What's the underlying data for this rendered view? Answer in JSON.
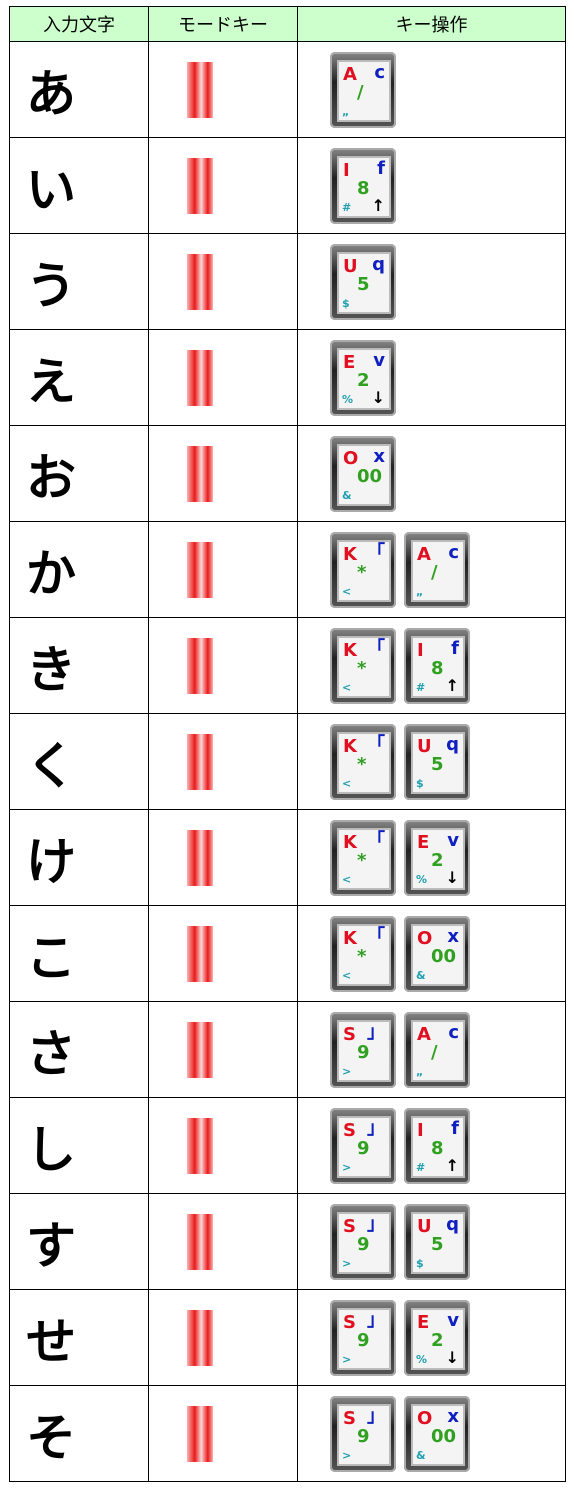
{
  "table": {
    "header": [
      "入力文字",
      "モードキー",
      "キー操作"
    ],
    "rows": [
      {
        "kana": "あ",
        "keys": [
          {
            "main": "A",
            "top": "c",
            "mid": "/",
            "sub": "„"
          }
        ]
      },
      {
        "kana": "い",
        "keys": [
          {
            "main": "I",
            "top": "f",
            "mid": "8",
            "sub": "#",
            "arrow": "↑"
          }
        ]
      },
      {
        "kana": "う",
        "keys": [
          {
            "main": "U",
            "top": "q",
            "mid": "5",
            "sub": "$"
          }
        ]
      },
      {
        "kana": "え",
        "keys": [
          {
            "main": "E",
            "top": "v",
            "mid": "2",
            "sub": "%",
            "arrow": "↓"
          }
        ]
      },
      {
        "kana": "お",
        "keys": [
          {
            "main": "O",
            "top": "x",
            "mid": "00",
            "sub": "&"
          }
        ]
      },
      {
        "kana": "か",
        "keys": [
          {
            "main": "K",
            "top": "「",
            "mid": "*",
            "sub": "<"
          },
          {
            "main": "A",
            "top": "c",
            "mid": "/",
            "sub": "„"
          }
        ]
      },
      {
        "kana": "き",
        "keys": [
          {
            "main": "K",
            "top": "「",
            "mid": "*",
            "sub": "<"
          },
          {
            "main": "I",
            "top": "f",
            "mid": "8",
            "sub": "#",
            "arrow": "↑"
          }
        ]
      },
      {
        "kana": "く",
        "keys": [
          {
            "main": "K",
            "top": "「",
            "mid": "*",
            "sub": "<"
          },
          {
            "main": "U",
            "top": "q",
            "mid": "5",
            "sub": "$"
          }
        ]
      },
      {
        "kana": "け",
        "keys": [
          {
            "main": "K",
            "top": "「",
            "mid": "*",
            "sub": "<"
          },
          {
            "main": "E",
            "top": "v",
            "mid": "2",
            "sub": "%",
            "arrow": "↓"
          }
        ]
      },
      {
        "kana": "こ",
        "keys": [
          {
            "main": "K",
            "top": "「",
            "mid": "*",
            "sub": "<"
          },
          {
            "main": "O",
            "top": "x",
            "mid": "00",
            "sub": "&"
          }
        ]
      },
      {
        "kana": "さ",
        "keys": [
          {
            "main": "S",
            "top": "」",
            "mid": "9",
            "sub": ">"
          },
          {
            "main": "A",
            "top": "c",
            "mid": "/",
            "sub": "„"
          }
        ]
      },
      {
        "kana": "し",
        "keys": [
          {
            "main": "S",
            "top": "」",
            "mid": "9",
            "sub": ">"
          },
          {
            "main": "I",
            "top": "f",
            "mid": "8",
            "sub": "#",
            "arrow": "↑"
          }
        ]
      },
      {
        "kana": "す",
        "keys": [
          {
            "main": "S",
            "top": "」",
            "mid": "9",
            "sub": ">"
          },
          {
            "main": "U",
            "top": "q",
            "mid": "5",
            "sub": "$"
          }
        ]
      },
      {
        "kana": "せ",
        "keys": [
          {
            "main": "S",
            "top": "」",
            "mid": "9",
            "sub": ">"
          },
          {
            "main": "E",
            "top": "v",
            "mid": "2",
            "sub": "%",
            "arrow": "↓"
          }
        ]
      },
      {
        "kana": "そ",
        "keys": [
          {
            "main": "S",
            "top": "」",
            "mid": "9",
            "sub": ">"
          },
          {
            "main": "O",
            "top": "x",
            "mid": "00",
            "sub": "&"
          }
        ]
      }
    ]
  }
}
